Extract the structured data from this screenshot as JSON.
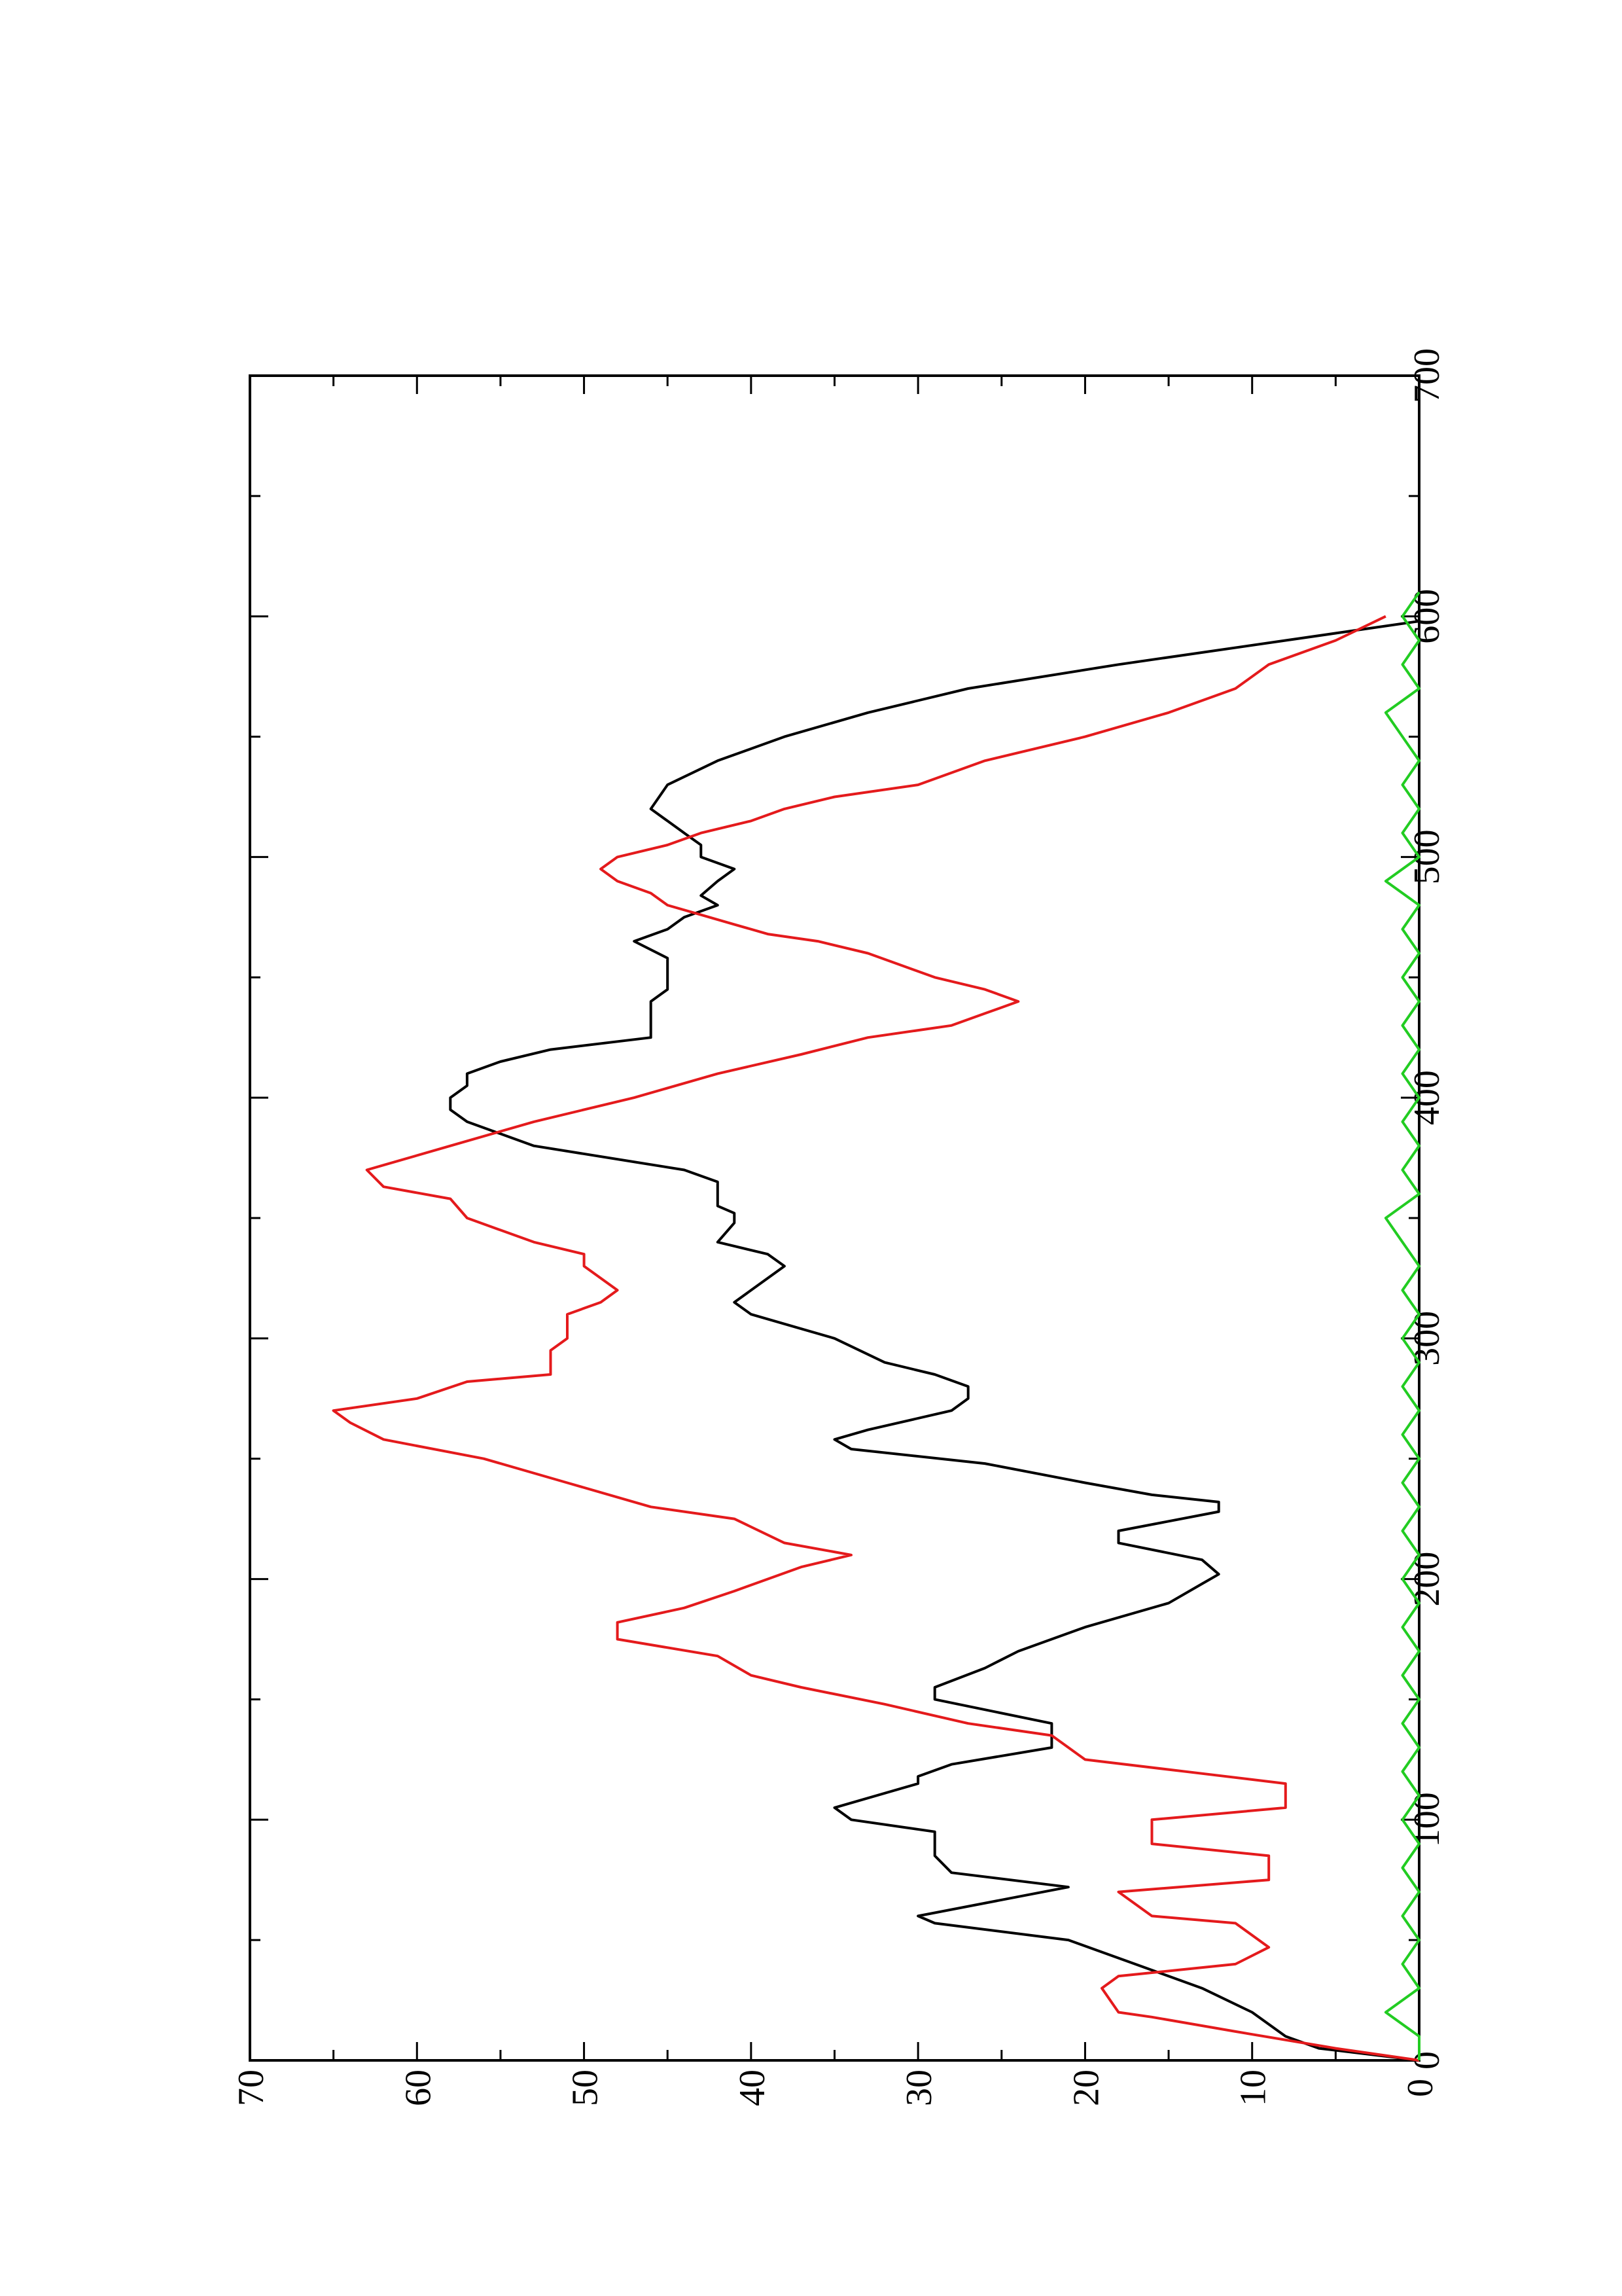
{
  "chart_data": {
    "type": "line",
    "title": "",
    "xlabel": "",
    "ylabel": "",
    "orientation": "rotated-90-ccw",
    "xlim": [
      0,
      700
    ],
    "ylim": [
      0,
      70
    ],
    "x_ticks": [
      "0",
      "100",
      "200",
      "300",
      "400",
      "500",
      "600",
      "700"
    ],
    "y_ticks": [
      "0",
      "10",
      "20",
      "30",
      "40",
      "50",
      "60",
      "70"
    ],
    "grid": false,
    "legend": "none",
    "series": [
      {
        "color": "#000000",
        "points": [
          [
            0,
            0
          ],
          [
            5,
            6
          ],
          [
            10,
            8
          ],
          [
            20,
            10
          ],
          [
            30,
            13
          ],
          [
            40,
            17
          ],
          [
            50,
            21
          ],
          [
            57,
            29
          ],
          [
            60,
            30
          ],
          [
            72,
            21
          ],
          [
            78,
            28
          ],
          [
            85,
            29
          ],
          [
            95,
            29
          ],
          [
            100,
            34
          ],
          [
            105,
            35
          ],
          [
            115,
            30
          ],
          [
            118,
            30
          ],
          [
            123,
            28
          ],
          [
            130,
            22
          ],
          [
            140,
            22
          ],
          [
            150,
            29
          ],
          [
            155,
            29
          ],
          [
            163,
            26
          ],
          [
            170,
            24
          ],
          [
            180,
            20
          ],
          [
            190,
            15
          ],
          [
            198,
            13
          ],
          [
            202,
            12
          ],
          [
            208,
            13
          ],
          [
            215,
            18
          ],
          [
            220,
            18
          ],
          [
            228,
            12
          ],
          [
            232,
            12
          ],
          [
            235,
            16
          ],
          [
            240,
            20
          ],
          [
            248,
            26
          ],
          [
            254,
            34
          ],
          [
            258,
            35
          ],
          [
            262,
            33
          ],
          [
            270,
            28
          ],
          [
            275,
            27
          ],
          [
            280,
            27
          ],
          [
            285,
            29
          ],
          [
            290,
            32
          ],
          [
            300,
            35
          ],
          [
            310,
            40
          ],
          [
            315,
            41
          ],
          [
            320,
            40
          ],
          [
            325,
            39
          ],
          [
            330,
            38
          ],
          [
            335,
            39
          ],
          [
            340,
            42
          ],
          [
            348,
            41
          ],
          [
            352,
            41
          ],
          [
            355,
            42
          ],
          [
            360,
            42
          ],
          [
            365,
            42
          ],
          [
            370,
            44
          ],
          [
            380,
            53
          ],
          [
            385,
            55
          ],
          [
            390,
            57
          ],
          [
            395,
            58
          ],
          [
            400,
            58
          ],
          [
            405,
            57
          ],
          [
            410,
            57
          ],
          [
            415,
            55
          ],
          [
            420,
            52
          ],
          [
            425,
            46
          ],
          [
            430,
            46
          ],
          [
            435,
            46
          ],
          [
            440,
            46
          ],
          [
            445,
            45
          ],
          [
            450,
            45
          ],
          [
            458,
            45
          ],
          [
            465,
            47
          ],
          [
            470,
            45
          ],
          [
            475,
            44
          ],
          [
            480,
            42
          ],
          [
            484,
            43
          ],
          [
            490,
            42
          ],
          [
            495,
            41
          ],
          [
            500,
            43
          ],
          [
            505,
            43
          ],
          [
            510,
            44
          ],
          [
            515,
            45
          ],
          [
            520,
            46
          ],
          [
            530,
            45
          ],
          [
            540,
            42
          ],
          [
            550,
            38
          ],
          [
            560,
            33
          ],
          [
            570,
            27
          ],
          [
            580,
            18
          ],
          [
            590,
            8
          ],
          [
            598,
            0
          ]
        ]
      },
      {
        "color": "#e41a1c",
        "points": [
          [
            0,
            0
          ],
          [
            5,
            5
          ],
          [
            12,
            11
          ],
          [
            18,
            16
          ],
          [
            20,
            18
          ],
          [
            30,
            19
          ],
          [
            35,
            18
          ],
          [
            40,
            11
          ],
          [
            47,
            9
          ],
          [
            57,
            11
          ],
          [
            60,
            16
          ],
          [
            70,
            18
          ],
          [
            75,
            9
          ],
          [
            85,
            9
          ],
          [
            90,
            16
          ],
          [
            100,
            16
          ],
          [
            105,
            8
          ],
          [
            115,
            8
          ],
          [
            120,
            14
          ],
          [
            125,
            20
          ],
          [
            135,
            22
          ],
          [
            140,
            27
          ],
          [
            148,
            32
          ],
          [
            155,
            37
          ],
          [
            160,
            40
          ],
          [
            168,
            42
          ],
          [
            175,
            48
          ],
          [
            182,
            48
          ],
          [
            188,
            44
          ],
          [
            195,
            41
          ],
          [
            205,
            37
          ],
          [
            210,
            34
          ],
          [
            215,
            38
          ],
          [
            225,
            41
          ],
          [
            230,
            46
          ],
          [
            240,
            51
          ],
          [
            250,
            56
          ],
          [
            258,
            62
          ],
          [
            265,
            64
          ],
          [
            270,
            65
          ],
          [
            275,
            60
          ],
          [
            282,
            57
          ],
          [
            285,
            52
          ],
          [
            295,
            52
          ],
          [
            300,
            51
          ],
          [
            310,
            51
          ],
          [
            315,
            49
          ],
          [
            320,
            48
          ],
          [
            330,
            50
          ],
          [
            335,
            50
          ],
          [
            340,
            53
          ],
          [
            345,
            55
          ],
          [
            350,
            57
          ],
          [
            358,
            58
          ],
          [
            363,
            62
          ],
          [
            370,
            63
          ],
          [
            380,
            58
          ],
          [
            390,
            53
          ],
          [
            400,
            47
          ],
          [
            410,
            42
          ],
          [
            418,
            37
          ],
          [
            425,
            33
          ],
          [
            430,
            28
          ],
          [
            435,
            26
          ],
          [
            440,
            24
          ],
          [
            445,
            26
          ],
          [
            450,
            29
          ],
          [
            455,
            31
          ],
          [
            460,
            33
          ],
          [
            465,
            36
          ],
          [
            468,
            39
          ],
          [
            472,
            41
          ],
          [
            476,
            43
          ],
          [
            480,
            45
          ],
          [
            485,
            46
          ],
          [
            490,
            48
          ],
          [
            495,
            49
          ],
          [
            500,
            48
          ],
          [
            505,
            45
          ],
          [
            510,
            43
          ],
          [
            515,
            40
          ],
          [
            520,
            38
          ],
          [
            525,
            35
          ],
          [
            530,
            30
          ],
          [
            540,
            26
          ],
          [
            550,
            20
          ],
          [
            560,
            15
          ],
          [
            570,
            11
          ],
          [
            580,
            9
          ],
          [
            590,
            5
          ],
          [
            600,
            2
          ]
        ]
      },
      {
        "color": "#22cc22",
        "points": [
          [
            0,
            0
          ],
          [
            10,
            0
          ],
          [
            20,
            2
          ],
          [
            30,
            0
          ],
          [
            40,
            1
          ],
          [
            50,
            0
          ],
          [
            60,
            1
          ],
          [
            70,
            0
          ],
          [
            80,
            1
          ],
          [
            90,
            0
          ],
          [
            100,
            1
          ],
          [
            110,
            0
          ],
          [
            120,
            1
          ],
          [
            130,
            0
          ],
          [
            140,
            1
          ],
          [
            150,
            0
          ],
          [
            160,
            1
          ],
          [
            170,
            0
          ],
          [
            180,
            1
          ],
          [
            190,
            0
          ],
          [
            200,
            1
          ],
          [
            210,
            0
          ],
          [
            220,
            1
          ],
          [
            230,
            0
          ],
          [
            240,
            1
          ],
          [
            250,
            0
          ],
          [
            260,
            1
          ],
          [
            270,
            0
          ],
          [
            280,
            1
          ],
          [
            290,
            0
          ],
          [
            300,
            1
          ],
          [
            310,
            0
          ],
          [
            320,
            1
          ],
          [
            330,
            0
          ],
          [
            340,
            1
          ],
          [
            350,
            2
          ],
          [
            360,
            0
          ],
          [
            370,
            1
          ],
          [
            380,
            0
          ],
          [
            390,
            1
          ],
          [
            400,
            0
          ],
          [
            410,
            1
          ],
          [
            420,
            0
          ],
          [
            430,
            1
          ],
          [
            440,
            0
          ],
          [
            450,
            1
          ],
          [
            460,
            0
          ],
          [
            470,
            1
          ],
          [
            480,
            0
          ],
          [
            490,
            2
          ],
          [
            500,
            0
          ],
          [
            510,
            1
          ],
          [
            520,
            0
          ],
          [
            530,
            1
          ],
          [
            540,
            0
          ],
          [
            550,
            1
          ],
          [
            560,
            2
          ],
          [
            570,
            0
          ],
          [
            580,
            1
          ],
          [
            590,
            0
          ],
          [
            600,
            1
          ],
          [
            610,
            0
          ]
        ]
      }
    ]
  }
}
